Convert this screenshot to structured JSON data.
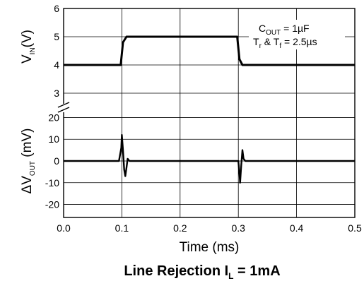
{
  "chart_data": {
    "type": "line",
    "title": "Line Rejection I",
    "title_sub": "L",
    "title_suffix": " = 1mA",
    "xlabel": "Time (ms)",
    "xlim": [
      0.0,
      0.5
    ],
    "x_ticks": [
      "0.0",
      "0.1",
      "0.2",
      "0.3",
      "0.4",
      "0.5"
    ],
    "grid": true,
    "upper_panel": {
      "ylabel_main": "V",
      "ylabel_sub": "IN",
      "ylabel_suffix": "(V)",
      "ylim": [
        2.6,
        6
      ],
      "y_ticks": [
        "6",
        "5",
        "4",
        "3"
      ],
      "series": [
        {
          "x": [
            0.0,
            0.098,
            0.102,
            0.108,
            0.298,
            0.302,
            0.307,
            0.5
          ],
          "values": [
            4.0,
            4.0,
            4.8,
            5.0,
            5.0,
            4.2,
            4.0,
            4.0
          ]
        }
      ]
    },
    "lower_panel": {
      "ylabel_main": "ΔV",
      "ylabel_sub": "OUT",
      "ylabel_suffix": " (mV)",
      "ylim": [
        -26,
        26
      ],
      "y_ticks": [
        "20",
        "10",
        "0",
        "-10",
        "-20"
      ],
      "series": [
        {
          "x": [
            0.0,
            0.095,
            0.099,
            0.1,
            0.102,
            0.104,
            0.106,
            0.108,
            0.11,
            0.113,
            0.3,
            0.302,
            0.303,
            0.305,
            0.307,
            0.309,
            0.312,
            0.5
          ],
          "values": [
            0.0,
            0.0,
            6.0,
            12.0,
            5.0,
            -4.0,
            -7.0,
            -3.0,
            1.0,
            0.0,
            0.0,
            -6.0,
            -10.0,
            -2.0,
            5.0,
            1.0,
            0.0,
            0.0
          ]
        }
      ]
    },
    "annotations": [
      {
        "main": "C",
        "sub": "OUT",
        "suffix": " = 1µF"
      },
      {
        "main": "T",
        "sub": "r",
        "mid": " & T",
        "sub2": "f",
        "suffix": " = 2.5µs"
      }
    ]
  }
}
